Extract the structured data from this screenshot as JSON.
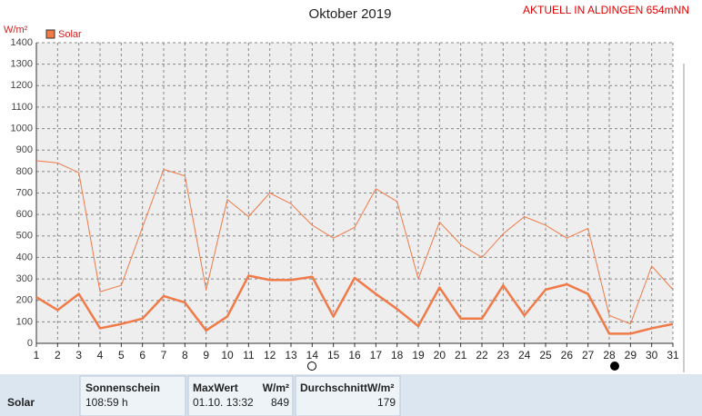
{
  "chart_data": {
    "type": "line",
    "title": "Oktober 2019",
    "header_note": "AKTUELL IN ALDINGEN 654mNN",
    "y_label": "W/m²",
    "legend_label": "Solar",
    "x": [
      1,
      2,
      3,
      4,
      5,
      6,
      7,
      8,
      9,
      10,
      11,
      12,
      13,
      14,
      15,
      16,
      17,
      18,
      19,
      20,
      21,
      22,
      23,
      24,
      25,
      26,
      27,
      28,
      29,
      30,
      31
    ],
    "xlim": [
      1,
      31
    ],
    "xticks": [
      1,
      2,
      3,
      4,
      5,
      6,
      7,
      8,
      9,
      10,
      11,
      12,
      13,
      14,
      15,
      16,
      17,
      18,
      19,
      20,
      21,
      22,
      23,
      24,
      25,
      26,
      27,
      28,
      29,
      30,
      31
    ],
    "ylim": [
      0,
      1400
    ],
    "yticks": [
      0,
      100,
      200,
      300,
      400,
      500,
      600,
      700,
      800,
      900,
      1000,
      1100,
      1200,
      1300,
      1400
    ],
    "grid": true,
    "series": [
      {
        "color": "#f07a48",
        "width": 1,
        "values": [
          850,
          840,
          795,
          240,
          270,
          540,
          810,
          780,
          250,
          670,
          590,
          700,
          650,
          550,
          490,
          540,
          720,
          660,
          300,
          565,
          460,
          400,
          510,
          590,
          550,
          490,
          535,
          130,
          90,
          360,
          250
        ]
      },
      {
        "color": "#f07a48",
        "width": 2.5,
        "values": [
          215,
          155,
          230,
          70,
          90,
          115,
          220,
          190,
          60,
          125,
          315,
          295,
          295,
          310,
          125,
          305,
          230,
          160,
          80,
          260,
          115,
          115,
          270,
          130,
          250,
          275,
          230,
          45,
          45,
          70,
          90
        ]
      }
    ]
  },
  "table": {
    "headers": [
      "Sonnenschein",
      "MaxWert",
      "W/m²",
      "DurchschnittW/m²"
    ],
    "row_label": "Solar",
    "row": [
      "108:59 h",
      "01.10. 13:32",
      "849",
      "179"
    ]
  }
}
